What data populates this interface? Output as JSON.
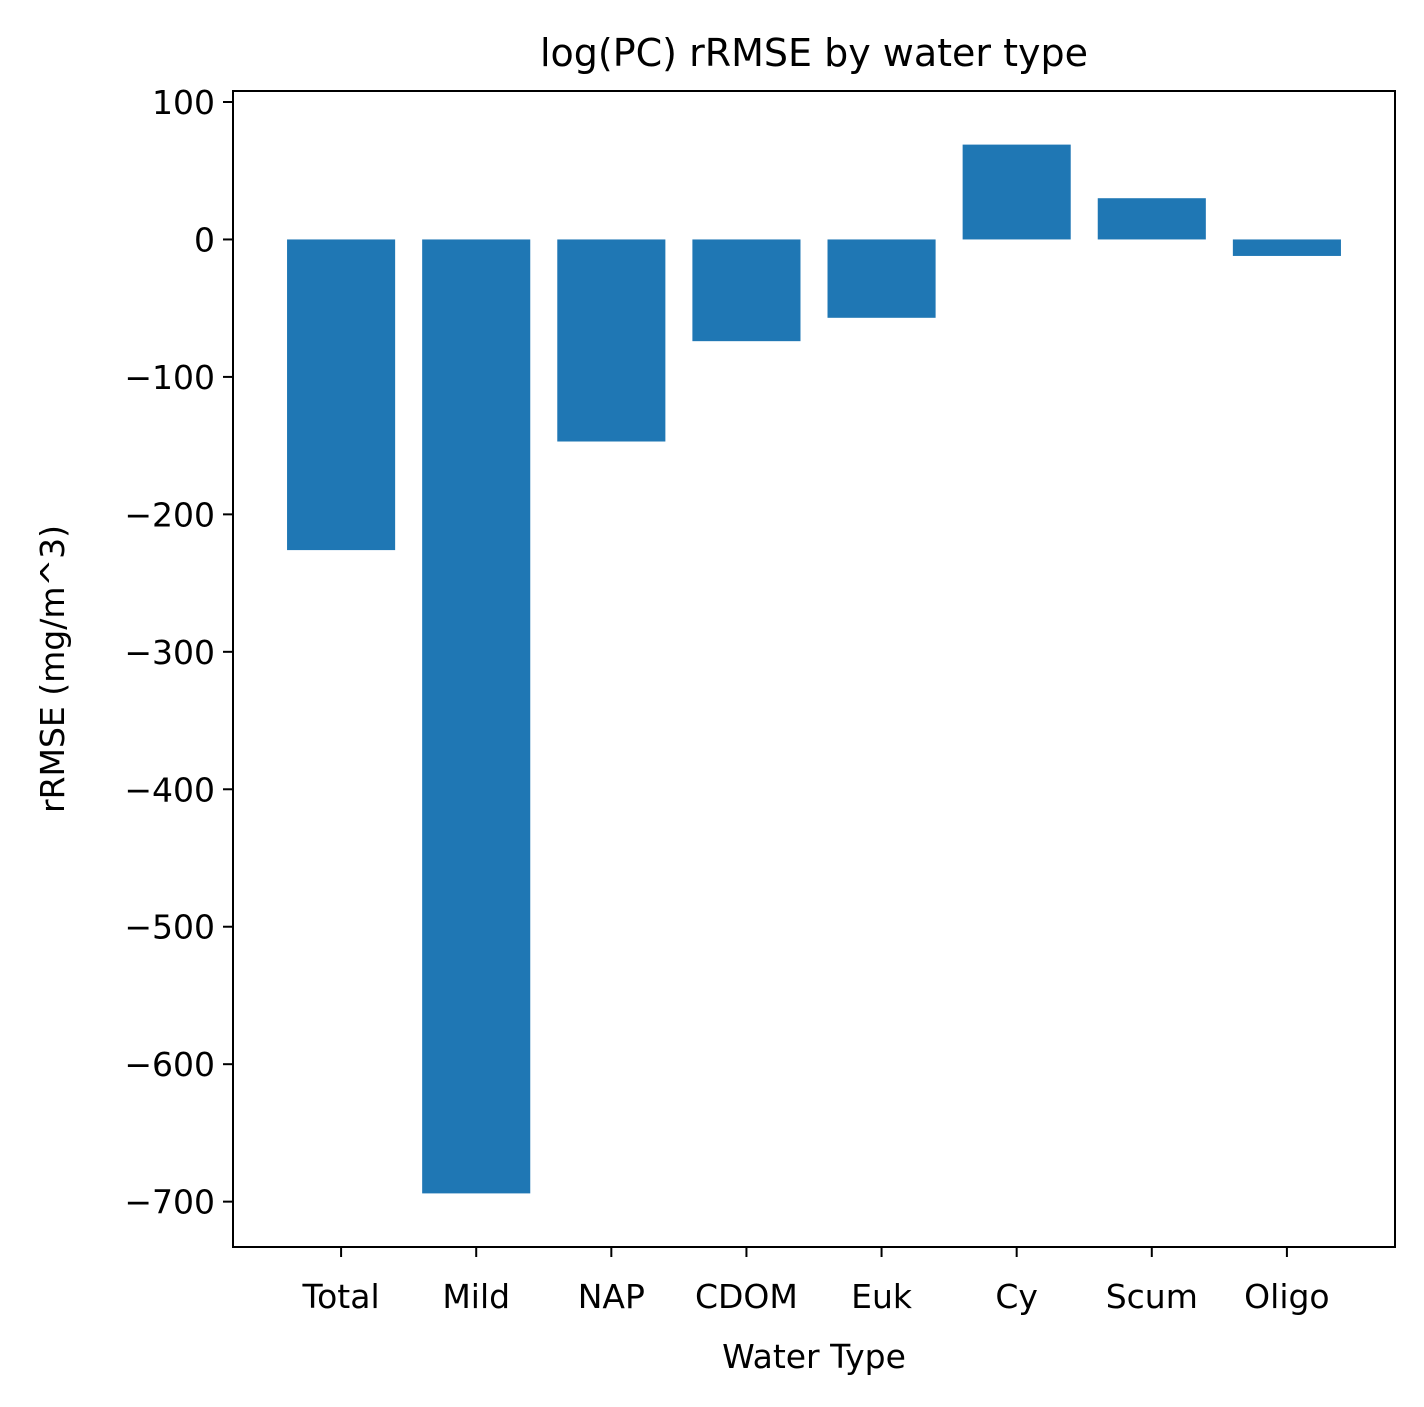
{
  "chart_data": {
    "type": "bar",
    "title": "log(PC) rRMSE by water type",
    "xlabel": "Water Type",
    "ylabel": "rRMSE (mg/m^3)",
    "categories": [
      "Total",
      "Mild",
      "NAP",
      "CDOM",
      "Euk",
      "Cy",
      "Scum",
      "Oligo"
    ],
    "values": [
      -226,
      -694,
      -147,
      -74,
      -57,
      69,
      30,
      -12
    ],
    "ylim": [
      -733,
      108
    ],
    "yticks": [
      100,
      0,
      -100,
      -200,
      -300,
      -400,
      -500,
      -600,
      -700
    ],
    "ytick_labels": [
      "100",
      "0",
      "−100",
      "−200",
      "−300",
      "−400",
      "−500",
      "−600",
      "−700"
    ],
    "bar_color": "#1f77b4",
    "grid": false,
    "legend": false
  }
}
